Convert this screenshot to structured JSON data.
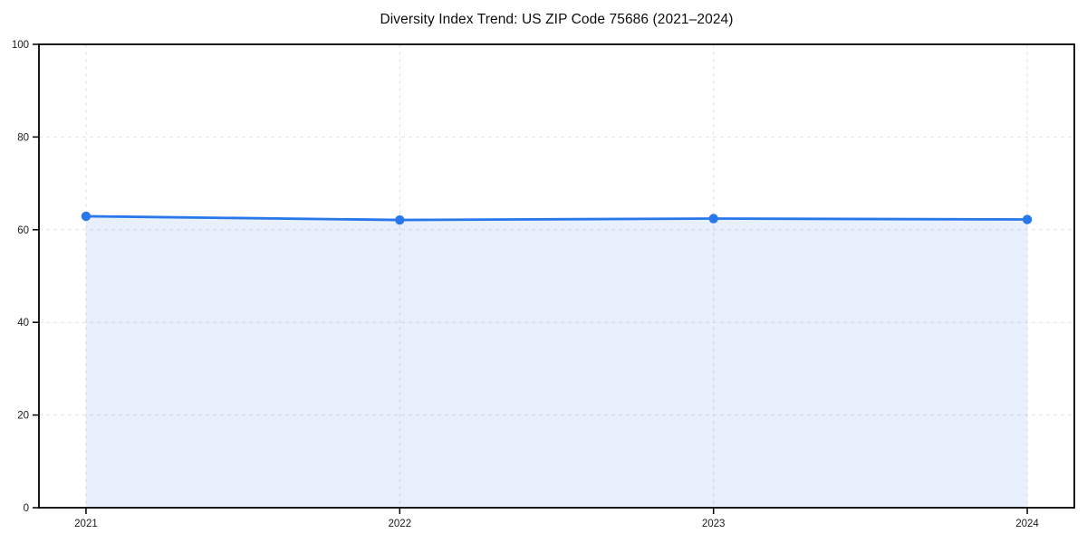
{
  "chart_data": {
    "type": "line",
    "title": "Diversity Index Trend: US ZIP Code 75686 (2021–2024)",
    "xlabel": "",
    "ylabel": "",
    "x": [
      2021,
      2022,
      2023,
      2024
    ],
    "x_tick_labels": [
      "2021",
      "2022",
      "2023",
      "2024"
    ],
    "series": [
      {
        "name": "Diversity Index",
        "values": [
          62.9,
          62.1,
          62.4,
          62.2
        ],
        "style": "line-with-markers-and-area-fill"
      }
    ],
    "ylim": [
      0,
      100
    ],
    "yticks": [
      0,
      20,
      40,
      60,
      80,
      100
    ],
    "y_tick_labels": [
      "0",
      "20",
      "40",
      "60",
      "80",
      "100"
    ],
    "grid": "dashed",
    "legend_position": "none",
    "x_margin_fraction": 0.05,
    "colors": {
      "line": "#2878eb",
      "marker": "#2878eb",
      "area_fill": "rgba(43, 120, 235, 0.11)",
      "grid": "#e2e2e2",
      "axis": "#000000",
      "tick_label": "#1a1a1a",
      "background": "#ffffff"
    }
  }
}
